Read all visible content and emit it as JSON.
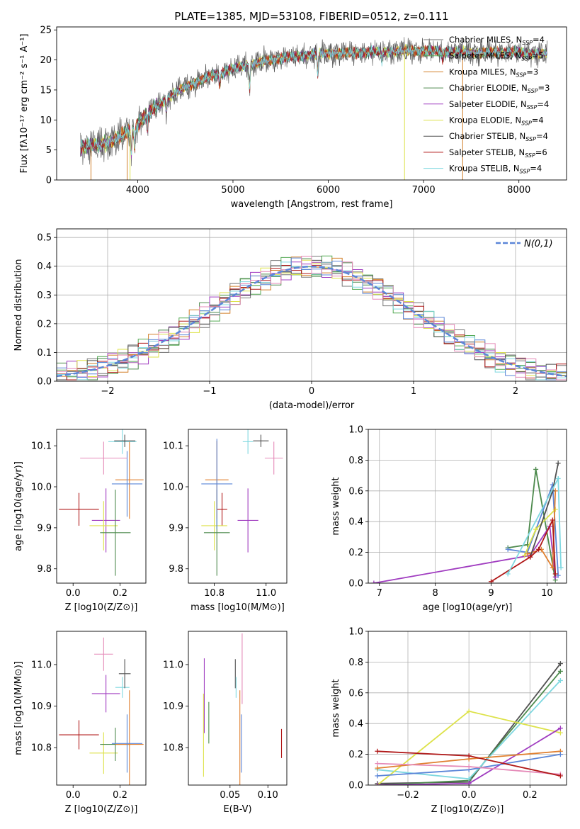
{
  "colors": {
    "Chabrier MILES": "#777777",
    "Salpeter MILES": "#55aa55",
    "Kroupa MILES": "#d2802a",
    "Chabrier ELODIE": "#4d8a4d",
    "Salpeter ELODIE": "#a03cc0",
    "Kroupa ELODIE": "#dde24a",
    "Chabrier STELIB": "#505050",
    "Salpeter STELIB": "#b01818",
    "Kroupa STELIB": "#7fd8e0",
    "extra_blue": "#5b86d8",
    "extra_pink": "#e58ab8",
    "extra_orange": "#e08030",
    "normal": "#5b86d8",
    "grid": "#b0b0b0"
  },
  "chart_data": [
    {
      "id": "spectrum",
      "type": "line",
      "title": "PLATE=1385, MJD=53108, FIBERID=0512, z=0.111",
      "xlabel": "wavelength [Angstrom, rest frame]",
      "ylabel": "Flux [fλ10⁻¹⁷ erg cm⁻² s⁻¹ A⁻¹]",
      "xlim": [
        3150,
        8500
      ],
      "ylim": [
        0,
        25.5
      ],
      "xticks": [
        4000,
        5000,
        6000,
        7000,
        8000
      ],
      "yticks": [
        0,
        5,
        10,
        15,
        20,
        25
      ],
      "grid": false,
      "legend_position": "upper-right",
      "continuum": [
        [
          3400,
          5.5
        ],
        [
          3600,
          5.8
        ],
        [
          3800,
          7
        ],
        [
          3950,
          8.5
        ],
        [
          4100,
          11
        ],
        [
          4300,
          13.5
        ],
        [
          4500,
          15.5
        ],
        [
          4800,
          17.5
        ],
        [
          5100,
          19
        ],
        [
          5500,
          20.3
        ],
        [
          5900,
          21
        ],
        [
          6300,
          21.2
        ],
        [
          6800,
          21.5
        ],
        [
          7100,
          21.5
        ],
        [
          7500,
          21.2
        ],
        [
          7900,
          21.3
        ],
        [
          8300,
          21
        ]
      ],
      "series": [
        {
          "name": "Chabrier MILES",
          "nssp": "4"
        },
        {
          "name": "Salpeter MILES",
          "nssp": "5"
        },
        {
          "name": "Kroupa MILES",
          "nssp": "3"
        },
        {
          "name": "Chabrier ELODIE",
          "nssp": "3"
        },
        {
          "name": "Salpeter ELODIE",
          "nssp": "4"
        },
        {
          "name": "Kroupa ELODIE",
          "nssp": "4"
        },
        {
          "name": "Chabrier STELIB",
          "nssp": "4"
        },
        {
          "name": "Salpeter STELIB",
          "nssp": "6"
        },
        {
          "name": "Kroupa STELIB",
          "nssp": "4"
        }
      ]
    },
    {
      "id": "residuals",
      "type": "bar",
      "xlabel": "(data-model)/error",
      "ylabel": "Normed distribution",
      "xlim": [
        -2.5,
        2.5
      ],
      "ylim": [
        0,
        0.53
      ],
      "xticks": [
        -2,
        -1,
        0,
        1,
        2
      ],
      "yticks": [
        0.0,
        0.1,
        0.2,
        0.3,
        0.4,
        0.5
      ],
      "grid": true,
      "legend": "N(0,1)",
      "bin_width": 0.1
    },
    {
      "id": "age_vs_z",
      "type": "scatter",
      "xlabel": "Z [log10(Z/Z⊙)]",
      "ylabel": "age [log10(age/yr)]",
      "xlim": [
        -0.07,
        0.31
      ],
      "ylim": [
        9.765,
        10.14
      ],
      "xticks": [
        0.0,
        0.2
      ],
      "yticks": [
        9.8,
        9.9,
        10.0,
        10.1
      ],
      "points": [
        {
          "color": "Salpeter STELIB",
          "x": 0.025,
          "y": 9.945,
          "xerr": 0.085,
          "yerr": 0.04
        },
        {
          "color": "Salpeter ELODIE",
          "x": 0.14,
          "y": 9.918,
          "xerr": 0.06,
          "yerr": 0.078
        },
        {
          "color": "Kroupa ELODIE",
          "x": 0.13,
          "y": 9.905,
          "xerr": 0.06,
          "yerr": 0.06
        },
        {
          "color": "Chabrier ELODIE",
          "x": 0.18,
          "y": 9.888,
          "xerr": 0.065,
          "yerr": 0.105
        },
        {
          "color": "extra_orange",
          "x": 0.24,
          "y": 10.017,
          "xerr": 0.06,
          "yerr": 0.095
        },
        {
          "color": "extra_blue",
          "x": 0.23,
          "y": 10.007,
          "xerr": 0.065,
          "yerr": 0.08
        },
        {
          "color": "extra_pink",
          "x": 0.13,
          "y": 10.07,
          "xerr": 0.1,
          "yerr": 0.04
        },
        {
          "color": "Kroupa STELIB",
          "x": 0.21,
          "y": 10.11,
          "xerr": 0.06,
          "yerr": 0.03
        },
        {
          "color": "Chabrier STELIB",
          "x": 0.22,
          "y": 10.112,
          "xerr": 0.045,
          "yerr": 0.015
        }
      ]
    },
    {
      "id": "age_vs_mass",
      "type": "scatter",
      "xlabel": "mass [log10(M/M⊙)]",
      "ylabel": "",
      "xlim": [
        10.7,
        11.08
      ],
      "ylim": [
        9.765,
        10.14
      ],
      "xticks": [
        10.8,
        11.0
      ],
      "yticks": [
        9.8,
        9.9,
        10.0,
        10.1
      ],
      "points": [
        {
          "color": "Salpeter STELIB",
          "x": 10.83,
          "y": 9.945,
          "xerr": 0.02,
          "yerr": 0.04
        },
        {
          "color": "Salpeter ELODIE",
          "x": 10.93,
          "y": 9.918,
          "xerr": 0.04,
          "yerr": 0.078
        },
        {
          "color": "Kroupa ELODIE",
          "x": 10.8,
          "y": 9.905,
          "xerr": 0.05,
          "yerr": 0.06
        },
        {
          "color": "Chabrier ELODIE",
          "x": 10.81,
          "y": 9.888,
          "xerr": 0.05,
          "yerr": 0.105
        },
        {
          "color": "extra_orange",
          "x": 10.81,
          "y": 10.017,
          "xerr": 0.045,
          "yerr": 0.095
        },
        {
          "color": "extra_blue",
          "x": 10.81,
          "y": 10.007,
          "xerr": 0.06,
          "yerr": 0.11
        },
        {
          "color": "extra_pink",
          "x": 11.03,
          "y": 10.07,
          "xerr": 0.035,
          "yerr": 0.04
        },
        {
          "color": "Kroupa STELIB",
          "x": 10.93,
          "y": 10.11,
          "xerr": 0.02,
          "yerr": 0.03
        },
        {
          "color": "Chabrier STELIB",
          "x": 10.98,
          "y": 10.112,
          "xerr": 0.03,
          "yerr": 0.015
        }
      ]
    },
    {
      "id": "mass_weight_vs_age",
      "type": "line",
      "xlabel": "age [log10(age/yr)]",
      "ylabel": "mass weight",
      "xlim": [
        6.8,
        10.35
      ],
      "ylim": [
        0,
        1
      ],
      "xticks": [
        7,
        8,
        9,
        10
      ],
      "yticks": [
        0.0,
        0.2,
        0.4,
        0.6,
        0.8,
        1.0
      ],
      "grid": true,
      "series": [
        {
          "color": "Chabrier ELODIE",
          "x": [
            9.3,
            9.65,
            9.8,
            10.15
          ],
          "y": [
            0.23,
            0.25,
            0.74,
            0.02
          ]
        },
        {
          "color": "Salpeter ELODIE",
          "x": [
            6.9,
            9.7,
            10.05,
            10.15
          ],
          "y": [
            0.0,
            0.18,
            0.37,
            0.04
          ]
        },
        {
          "color": "extra_blue",
          "x": [
            9.3,
            9.65,
            10.1,
            10.2
          ],
          "y": [
            0.22,
            0.2,
            0.64,
            0.05
          ]
        },
        {
          "color": "Kroupa ELODIE",
          "x": [
            9.6,
            9.8,
            10.15
          ],
          "y": [
            0.18,
            0.35,
            0.48
          ]
        },
        {
          "color": "extra_orange",
          "x": [
            9.65,
            9.9,
            10.1,
            10.15
          ],
          "y": [
            0.19,
            0.22,
            0.1,
            0.6
          ]
        },
        {
          "color": "Chabrier STELIB",
          "x": [
            9.7,
            10.1,
            10.2
          ],
          "y": [
            0.17,
            0.6,
            0.78
          ]
        },
        {
          "color": "Salpeter STELIB",
          "x": [
            9.0,
            9.7,
            9.85,
            10.1,
            10.15
          ],
          "y": [
            0.01,
            0.17,
            0.22,
            0.41,
            0.06
          ]
        },
        {
          "color": "Kroupa STELIB",
          "x": [
            9.3,
            10.2,
            10.25
          ],
          "y": [
            0.06,
            0.68,
            0.1
          ]
        }
      ]
    },
    {
      "id": "mass_vs_z",
      "type": "scatter",
      "xlabel": "Z [log10(Z/Z⊙)]",
      "ylabel": "mass [log10(M/M⊙)]",
      "xlim": [
        -0.07,
        0.31
      ],
      "ylim": [
        10.71,
        11.08
      ],
      "xticks": [
        0.0,
        0.2
      ],
      "yticks": [
        10.8,
        10.9,
        11.0
      ],
      "points": [
        {
          "color": "Salpeter STELIB",
          "x": 0.025,
          "y": 10.831,
          "xerr": 0.085,
          "yerr": 0.035
        },
        {
          "color": "Salpeter ELODIE",
          "x": 0.14,
          "y": 10.93,
          "xerr": 0.06,
          "yerr": 0.045
        },
        {
          "color": "Kroupa ELODIE",
          "x": 0.13,
          "y": 10.787,
          "xerr": 0.06,
          "yerr": 0.05
        },
        {
          "color": "Chabrier ELODIE",
          "x": 0.18,
          "y": 10.808,
          "xerr": 0.065,
          "yerr": 0.04
        },
        {
          "color": "extra_orange",
          "x": 0.24,
          "y": 10.808,
          "xerr": 0.06,
          "yerr": 0.13
        },
        {
          "color": "extra_blue",
          "x": 0.23,
          "y": 10.81,
          "xerr": 0.065,
          "yerr": 0.07
        },
        {
          "color": "extra_pink",
          "x": 0.13,
          "y": 11.025,
          "xerr": 0.04,
          "yerr": 0.04
        },
        {
          "color": "Kroupa STELIB",
          "x": 0.21,
          "y": 10.945,
          "xerr": 0.03,
          "yerr": 0.025
        },
        {
          "color": "Chabrier STELIB",
          "x": 0.22,
          "y": 10.978,
          "xerr": 0.025,
          "yerr": 0.035
        }
      ]
    },
    {
      "id": "mass_vs_ebv",
      "type": "scatter",
      "xlabel": "E(B-V)",
      "ylabel": "",
      "xlim": [
        -0.005,
        0.125
      ],
      "ylim": [
        10.71,
        11.08
      ],
      "xticks": [
        0.05,
        0.1
      ],
      "yticks": [
        10.8,
        10.9,
        11.0
      ],
      "points": [
        {
          "color": "Kroupa ELODIE",
          "x": 0.015,
          "y": 10.83,
          "xerr": 0,
          "yerr": 0.1
        },
        {
          "color": "Salpeter ELODIE",
          "x": 0.016,
          "y": 10.925,
          "xerr": 0,
          "yerr": 0.09
        },
        {
          "color": "Chabrier ELODIE",
          "x": 0.022,
          "y": 10.86,
          "xerr": 0,
          "yerr": 0.05
        },
        {
          "color": "Chabrier STELIB",
          "x": 0.057,
          "y": 10.978,
          "xerr": 0,
          "yerr": 0.035
        },
        {
          "color": "Kroupa STELIB",
          "x": 0.058,
          "y": 10.945,
          "xerr": 0,
          "yerr": 0.025
        },
        {
          "color": "extra_orange",
          "x": 0.063,
          "y": 10.808,
          "xerr": 0,
          "yerr": 0.13
        },
        {
          "color": "extra_blue",
          "x": 0.065,
          "y": 10.81,
          "xerr": 0,
          "yerr": 0.07
        },
        {
          "color": "extra_pink",
          "x": 0.066,
          "y": 10.99,
          "xerr": 0,
          "yerr": 0.085
        },
        {
          "color": "Salpeter STELIB",
          "x": 0.118,
          "y": 10.81,
          "xerr": 0,
          "yerr": 0.035
        }
      ]
    },
    {
      "id": "mass_weight_vs_z",
      "type": "line",
      "xlabel": "Z [log10(Z/Z⊙)]",
      "ylabel": "mass weight",
      "xlim": [
        -0.33,
        0.32
      ],
      "ylim": [
        0,
        1
      ],
      "xticks": [
        -0.2,
        0.0,
        0.2
      ],
      "yticks": [
        0.0,
        0.2,
        0.4,
        0.6,
        0.8,
        1.0
      ],
      "grid": true,
      "series": [
        {
          "color": "Chabrier STELIB",
          "x": [
            -0.3,
            0.0,
            0.3
          ],
          "y": [
            0.01,
            0.02,
            0.79
          ]
        },
        {
          "color": "Chabrier ELODIE",
          "x": [
            -0.3,
            0.0,
            0.3
          ],
          "y": [
            0.0,
            0.03,
            0.74
          ]
        },
        {
          "color": "Kroupa STELIB",
          "x": [
            -0.3,
            0.0,
            0.3
          ],
          "y": [
            0.1,
            0.04,
            0.68
          ]
        },
        {
          "color": "Kroupa ELODIE",
          "x": [
            -0.3,
            0.0,
            0.3
          ],
          "y": [
            0.0,
            0.48,
            0.34
          ]
        },
        {
          "color": "Salpeter ELODIE",
          "x": [
            -0.3,
            0.0,
            0.3
          ],
          "y": [
            0.0,
            0.01,
            0.37
          ]
        },
        {
          "color": "extra_orange",
          "x": [
            -0.3,
            0.0,
            0.3
          ],
          "y": [
            0.11,
            0.17,
            0.22
          ]
        },
        {
          "color": "extra_blue",
          "x": [
            -0.3,
            0.0,
            0.3
          ],
          "y": [
            0.06,
            0.1,
            0.2
          ]
        },
        {
          "color": "extra_pink",
          "x": [
            -0.3,
            0.0,
            0.3
          ],
          "y": [
            0.14,
            0.12,
            0.07
          ]
        },
        {
          "color": "Salpeter STELIB",
          "x": [
            -0.3,
            0.0,
            0.3
          ],
          "y": [
            0.22,
            0.19,
            0.06
          ]
        }
      ]
    }
  ]
}
